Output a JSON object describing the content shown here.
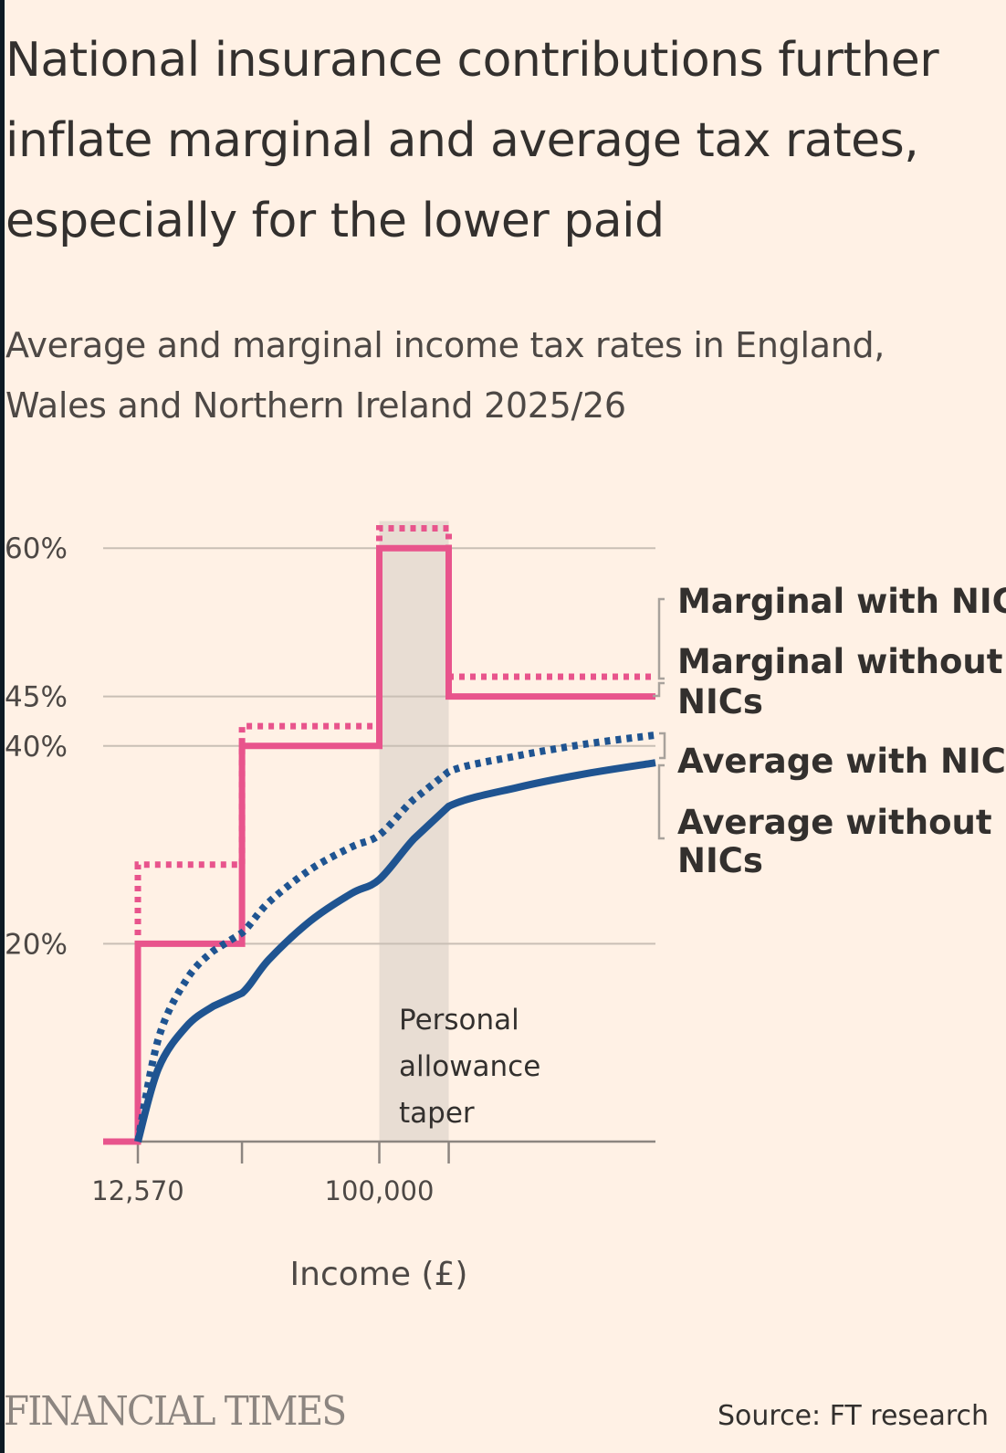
{
  "header": {
    "title_lines": [
      "National insurance contributions further",
      "inflate marginal and average tax rates,",
      "especially for the lower paid"
    ],
    "subtitle_lines": [
      "Average and marginal income tax rates in England,",
      "Wales and Northern Ireland 2025/26"
    ]
  },
  "footer": {
    "brand": "FINANCIAL TIMES",
    "source": "Source: FT research"
  },
  "colors": {
    "background": "#fff1e5",
    "marginal": "#e8548c",
    "average": "#1f5491",
    "grid": "#c9bfb5",
    "shade": "#e8ddd3"
  },
  "chart_data": {
    "type": "line",
    "title": "Average and marginal income tax rates in England, Wales and Northern Ireland 2025/26",
    "xlabel": "Income (£)",
    "ylabel": "",
    "xlim": [
      0,
      200000
    ],
    "ylim": [
      0,
      60
    ],
    "y_ticks": [
      {
        "value": 20,
        "label": "20%"
      },
      {
        "value": 40,
        "label": "40%"
      },
      {
        "value": 45,
        "label": "45%"
      },
      {
        "value": 60,
        "label": "60%"
      }
    ],
    "x_ticks": [
      {
        "value": 12570,
        "label": "12,570"
      },
      {
        "value": 50270,
        "label": ""
      },
      {
        "value": 100000,
        "label": "100,000"
      },
      {
        "value": 125140,
        "label": ""
      }
    ],
    "grid": true,
    "shaded_region": {
      "x": [
        100000,
        125140
      ],
      "label_lines": [
        "Personal",
        "allowance",
        "taper"
      ]
    },
    "series": [
      {
        "name": "Marginal with NICs",
        "style": "dotted",
        "color": "#e8548c",
        "step_points": [
          [
            0,
            0
          ],
          [
            12570,
            0
          ],
          [
            12570,
            28
          ],
          [
            50270,
            28
          ],
          [
            50270,
            42
          ],
          [
            100000,
            42
          ],
          [
            100000,
            62
          ],
          [
            125140,
            62
          ],
          [
            125140,
            47
          ],
          [
            200000,
            47
          ]
        ]
      },
      {
        "name": "Marginal without NICs",
        "style": "solid",
        "color": "#e8548c",
        "step_points": [
          [
            0,
            0
          ],
          [
            12570,
            0
          ],
          [
            12570,
            20
          ],
          [
            50270,
            20
          ],
          [
            50270,
            40
          ],
          [
            100000,
            40
          ],
          [
            100000,
            60
          ],
          [
            125140,
            60
          ],
          [
            125140,
            45
          ],
          [
            200000,
            45
          ]
        ]
      },
      {
        "name": "Average with NICs",
        "style": "dotted",
        "color": "#1f5491",
        "points": [
          [
            12570,
            0
          ],
          [
            20000,
            10.4
          ],
          [
            30000,
            16.3
          ],
          [
            40000,
            19.3
          ],
          [
            50270,
            21.1
          ],
          [
            60000,
            24.2
          ],
          [
            75000,
            27.5
          ],
          [
            90000,
            29.8
          ],
          [
            100000,
            31.0
          ],
          [
            112500,
            34.6
          ],
          [
            125140,
            37.4
          ],
          [
            150000,
            39.0
          ],
          [
            175000,
            40.2
          ],
          [
            200000,
            41.1
          ]
        ]
      },
      {
        "name": "Average without NICs",
        "style": "solid",
        "color": "#1f5491",
        "points": [
          [
            12570,
            0
          ],
          [
            20000,
            7.4
          ],
          [
            30000,
            11.6
          ],
          [
            40000,
            13.7
          ],
          [
            50270,
            15.0
          ],
          [
            60000,
            18.4
          ],
          [
            75000,
            22.3
          ],
          [
            90000,
            25.1
          ],
          [
            100000,
            26.5
          ],
          [
            112500,
            30.6
          ],
          [
            125140,
            33.9
          ],
          [
            150000,
            35.8
          ],
          [
            175000,
            37.2
          ],
          [
            200000,
            38.3
          ]
        ]
      }
    ],
    "legend": {
      "placement": "right",
      "groups": [
        {
          "label_lines": [
            "Marginal with NICs"
          ]
        },
        {
          "label_lines": [
            "Marginal without",
            "NICs"
          ]
        },
        {
          "label_lines": [
            "Average with NICs"
          ]
        },
        {
          "label_lines": [
            "Average without",
            "NICs"
          ]
        }
      ]
    }
  }
}
